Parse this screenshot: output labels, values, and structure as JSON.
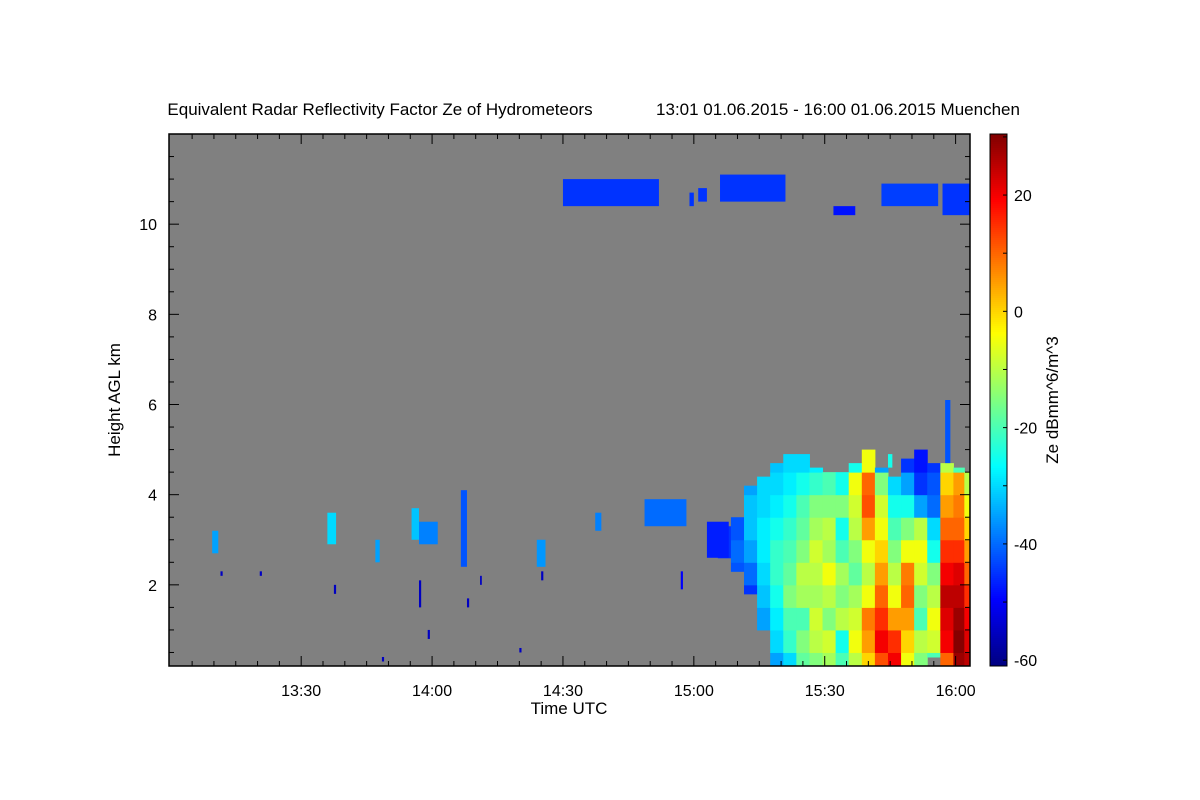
{
  "chart_data": {
    "type": "heatmap",
    "title": "Equivalent Radar Reflectivity Factor Ze of Hydrometeors",
    "subtitle": "13:01 01.06.2015 - 16:00 01.06.2015 Muenchen",
    "xlabel": "Time UTC",
    "ylabel": "Height AGL km",
    "colorbar_label": "Ze dBmm^6/m^3",
    "time_origin": "13:00",
    "xlim_minutes": [
      -0.3,
      183.3
    ],
    "ylim_km": [
      0.2,
      12.0
    ],
    "clim": [
      -61,
      30.5
    ],
    "colormap": "jet",
    "background_color": "#808080",
    "x_ticks": [
      {
        "min": 30,
        "label": "13:30"
      },
      {
        "min": 60,
        "label": "14:00"
      },
      {
        "min": 90,
        "label": "14:30"
      },
      {
        "min": 120,
        "label": "15:00"
      },
      {
        "min": 150,
        "label": "15:30"
      },
      {
        "min": 180,
        "label": "16:00"
      }
    ],
    "y_ticks": [
      {
        "v": 2,
        "label": "2"
      },
      {
        "v": 4,
        "label": "4"
      },
      {
        "v": 6,
        "label": "6"
      },
      {
        "v": 8,
        "label": "8"
      },
      {
        "v": 10,
        "label": "10"
      }
    ],
    "colorbar_ticks": [
      {
        "v": 20,
        "label": "20"
      },
      {
        "v": 0,
        "label": "0"
      },
      {
        "v": -20,
        "label": "-20"
      },
      {
        "v": -40,
        "label": "-40"
      },
      {
        "v": -60,
        "label": "-60"
      }
    ],
    "echo_features": [
      {
        "t": [
          90,
          112
        ],
        "h": [
          10.4,
          11.0
        ],
        "ze": -45
      },
      {
        "t": [
          119,
          120
        ],
        "h": [
          10.4,
          10.7
        ],
        "ze": -45
      },
      {
        "t": [
          121,
          123
        ],
        "h": [
          10.5,
          10.8
        ],
        "ze": -45
      },
      {
        "t": [
          126,
          141
        ],
        "h": [
          10.5,
          11.1
        ],
        "ze": -45
      },
      {
        "t": [
          152,
          157
        ],
        "h": [
          10.2,
          10.4
        ],
        "ze": -48
      },
      {
        "t": [
          163,
          176
        ],
        "h": [
          10.4,
          10.9
        ],
        "ze": -44
      },
      {
        "t": [
          177,
          183.3
        ],
        "h": [
          10.2,
          10.9
        ],
        "ze": -45
      },
      {
        "t": [
          9.6,
          11
        ],
        "h": [
          2.7,
          3.2
        ],
        "ze": -35
      },
      {
        "t": [
          36,
          38
        ],
        "h": [
          2.9,
          3.6
        ],
        "ze": -30
      },
      {
        "t": [
          47,
          48
        ],
        "h": [
          2.5,
          3.0
        ],
        "ze": -35
      },
      {
        "t": [
          55.3,
          57
        ],
        "h": [
          3.0,
          3.7
        ],
        "ze": -32
      },
      {
        "t": [
          57,
          61.3
        ],
        "h": [
          2.9,
          3.4
        ],
        "ze": -38
      },
      {
        "t": [
          66.6,
          68
        ],
        "h": [
          2.4,
          4.1
        ],
        "ze": -42
      },
      {
        "t": [
          84,
          86
        ],
        "h": [
          2.4,
          3.0
        ],
        "ze": -36
      },
      {
        "t": [
          97.4,
          98.8
        ],
        "h": [
          3.2,
          3.6
        ],
        "ze": -38
      },
      {
        "t": [
          108.7,
          118.3
        ],
        "h": [
          3.3,
          3.9
        ],
        "ze": -40
      },
      {
        "t": [
          123,
          128
        ],
        "h": [
          2.6,
          3.4
        ],
        "ze": -47
      },
      {
        "t": [
          177.6,
          178.8
        ],
        "h": [
          4.7,
          6.1
        ],
        "ze": -42
      },
      {
        "t": [
          164.5,
          165.5
        ],
        "h": [
          4.6,
          4.9
        ],
        "ze": -25
      },
      {
        "t": [
          11.5,
          12
        ],
        "h": [
          2.2,
          2.3
        ],
        "ze": -55
      },
      {
        "t": [
          20.5,
          21
        ],
        "h": [
          2.2,
          2.3
        ],
        "ze": -55
      },
      {
        "t": [
          37.5,
          38
        ],
        "h": [
          1.8,
          2.0
        ],
        "ze": -55
      },
      {
        "t": [
          57,
          57.5
        ],
        "h": [
          1.5,
          2.1
        ],
        "ze": -55
      },
      {
        "t": [
          59,
          59.5
        ],
        "h": [
          0.8,
          1.0
        ],
        "ze": -55
      },
      {
        "t": [
          68,
          68.5
        ],
        "h": [
          1.5,
          1.7
        ],
        "ze": -55
      },
      {
        "t": [
          71,
          71.4
        ],
        "h": [
          2.0,
          2.2
        ],
        "ze": -55
      },
      {
        "t": [
          85,
          85.5
        ],
        "h": [
          2.1,
          2.3
        ],
        "ze": -55
      },
      {
        "t": [
          117,
          117.5
        ],
        "h": [
          1.9,
          2.3
        ],
        "ze": -50
      },
      {
        "t": [
          48.5,
          49
        ],
        "h": [
          0.3,
          0.4
        ],
        "ze": -55
      },
      {
        "t": [
          80,
          80.5
        ],
        "h": [
          0.5,
          0.6
        ],
        "ze": -55
      }
    ],
    "storm_profile_heights_km": [
      0.25,
      0.75,
      1.25,
      1.75,
      2.25,
      2.75,
      3.25,
      3.75,
      4.25,
      4.75
    ],
    "storm_columns": [
      {
        "t": 127,
        "base": 2.6,
        "top": 3.3,
        "ze": [
          -45,
          -45,
          -45,
          -45,
          -45,
          -45,
          -45,
          -45,
          -45,
          -45
        ]
      },
      {
        "t": 130,
        "base": 2.3,
        "top": 3.5,
        "ze": [
          -42,
          -42,
          -42,
          -42,
          -42,
          -40,
          -42,
          -42,
          -42,
          -42
        ]
      },
      {
        "t": 133,
        "base": 1.8,
        "top": 4.2,
        "ze": [
          -45,
          -45,
          -45,
          -45,
          -40,
          -35,
          -32,
          -32,
          -35,
          -40
        ]
      },
      {
        "t": 136,
        "base": 1.0,
        "top": 4.4,
        "ze": [
          -40,
          -40,
          -35,
          -32,
          -30,
          -28,
          -28,
          -30,
          -30,
          -35
        ]
      },
      {
        "t": 139,
        "base": 0.2,
        "top": 4.7,
        "ze": [
          -35,
          -30,
          -28,
          -25,
          -22,
          -22,
          -25,
          -28,
          -30,
          -32
        ]
      },
      {
        "t": 142,
        "base": 0.2,
        "top": 4.9,
        "ze": [
          -30,
          -22,
          -20,
          -15,
          -18,
          -20,
          -22,
          -25,
          -28,
          -30
        ]
      },
      {
        "t": 145,
        "base": 0.2,
        "top": 4.9,
        "ze": [
          -18,
          -15,
          -20,
          -12,
          -10,
          -15,
          -18,
          -20,
          -25,
          -30
        ]
      },
      {
        "t": 148,
        "base": 0.2,
        "top": 4.6,
        "ze": [
          -15,
          -10,
          -8,
          -12,
          -10,
          -8,
          -12,
          -15,
          -22,
          -28
        ]
      },
      {
        "t": 151,
        "base": 0.2,
        "top": 4.5,
        "ze": [
          -12,
          -8,
          -15,
          -10,
          -5,
          -12,
          -10,
          -15,
          -20,
          -30
        ]
      },
      {
        "t": 154,
        "base": 0.2,
        "top": 4.5,
        "ze": [
          -20,
          -25,
          -10,
          -15,
          -12,
          -20,
          -25,
          -15,
          -25,
          -32
        ]
      },
      {
        "t": 157,
        "base": 0.2,
        "top": 4.7,
        "ze": [
          -10,
          -5,
          -8,
          -12,
          -18,
          -15,
          -10,
          -8,
          -5,
          -25
        ]
      },
      {
        "t": 160,
        "base": 0.2,
        "top": 5.0,
        "ze": [
          0,
          5,
          8,
          -5,
          -10,
          -5,
          5,
          12,
          10,
          -5
        ]
      },
      {
        "t": 163,
        "base": 0.2,
        "top": 4.6,
        "ze": [
          12,
          20,
          15,
          10,
          5,
          0,
          -5,
          -8,
          -15,
          -35
        ]
      },
      {
        "t": 166,
        "base": 0.2,
        "top": 4.4,
        "ze": [
          20,
          15,
          5,
          -5,
          -10,
          -15,
          -20,
          -25,
          -30,
          -42
        ]
      },
      {
        "t": 169,
        "base": 0.2,
        "top": 4.8,
        "ze": [
          -5,
          0,
          5,
          10,
          8,
          -5,
          -15,
          -25,
          -35,
          -45
        ]
      },
      {
        "t": 172,
        "base": 0.2,
        "top": 5.0,
        "ze": [
          -15,
          -10,
          -20,
          -15,
          -8,
          -5,
          -10,
          -35,
          -45,
          -48
        ]
      },
      {
        "t": 175,
        "base": 0.4,
        "top": 4.7,
        "ze": [
          -20,
          -8,
          -5,
          -10,
          -15,
          -25,
          -30,
          -40,
          -42,
          -45
        ]
      },
      {
        "t": 178,
        "base": 0.2,
        "top": 4.7,
        "ze": [
          10,
          20,
          22,
          25,
          20,
          15,
          10,
          5,
          0,
          -10
        ]
      },
      {
        "t": 181,
        "base": 0.2,
        "top": 4.6,
        "ze": [
          28,
          30,
          28,
          25,
          22,
          15,
          10,
          8,
          5,
          -20
        ]
      },
      {
        "t": 183,
        "base": 0.2,
        "top": 4.5,
        "ze": [
          25,
          22,
          20,
          15,
          10,
          5,
          0,
          -5,
          -10,
          -25
        ]
      }
    ]
  }
}
